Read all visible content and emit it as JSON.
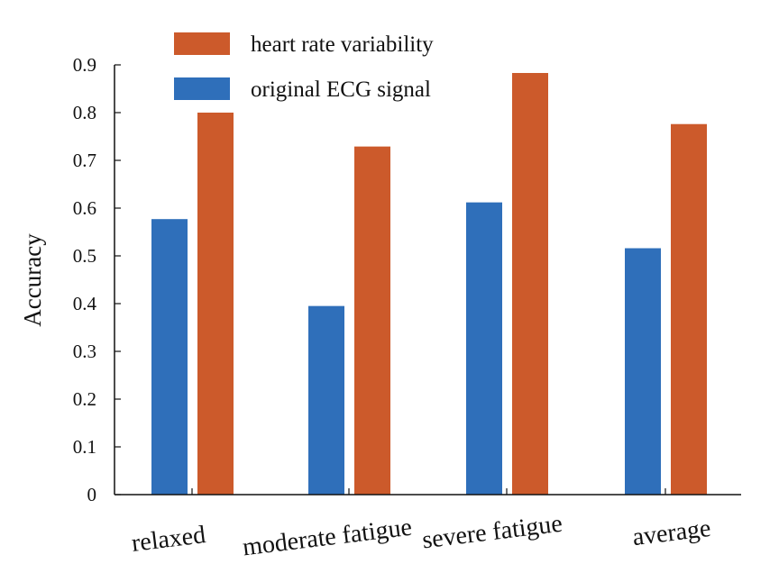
{
  "chart_data": {
    "type": "bar",
    "categories": [
      "relaxed",
      "moderate fatigue",
      "severe fatigue",
      "average"
    ],
    "series": [
      {
        "name": "original ECG signal",
        "color": "#2f6fba",
        "values": [
          0.577,
          0.395,
          0.612,
          0.516
        ]
      },
      {
        "name": "heart rate variability",
        "color": "#cc5a2b",
        "values": [
          0.8,
          0.729,
          0.883,
          0.776
        ]
      }
    ],
    "title": "",
    "xlabel": "",
    "ylabel": "Accuracy",
    "ylim": [
      0,
      0.9
    ],
    "yticks": [
      "0",
      "0.1",
      "0.2",
      "0.3",
      "0.4",
      "0.5",
      "0.6",
      "0.7",
      "0.8",
      "0.9"
    ],
    "legend": {
      "placement": "top",
      "entries": [
        "heart rate variability",
        "original ECG signal"
      ]
    },
    "grid": false
  }
}
